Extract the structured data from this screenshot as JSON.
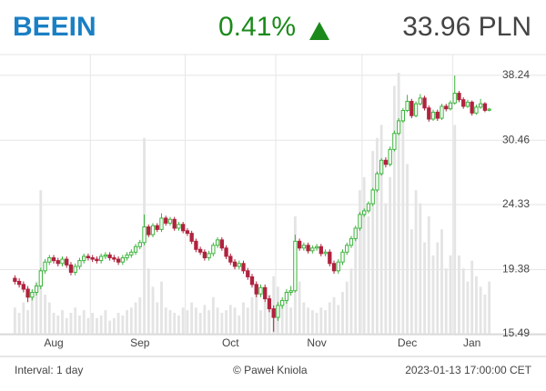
{
  "header": {
    "ticker": "BEEIN",
    "change": "0.41%",
    "price": "33.96 PLN"
  },
  "chart_data": {
    "type": "candlestick",
    "categories": [
      null,
      null,
      null,
      null,
      null,
      null,
      null,
      null,
      null,
      "Aug",
      null,
      null,
      null,
      null,
      null,
      null,
      null,
      null,
      null,
      null,
      null,
      null,
      null,
      null,
      null,
      null,
      null,
      null,
      null,
      "Sep",
      null,
      null,
      null,
      null,
      null,
      null,
      null,
      null,
      null,
      null,
      null,
      null,
      null,
      null,
      null,
      null,
      null,
      null,
      null,
      null,
      "Oct",
      null,
      null,
      null,
      null,
      null,
      null,
      null,
      null,
      null,
      null,
      null,
      null,
      null,
      null,
      null,
      null,
      null,
      null,
      null,
      "Nov",
      null,
      null,
      null,
      null,
      null,
      null,
      null,
      null,
      null,
      null,
      null,
      null,
      null,
      null,
      null,
      null,
      null,
      null,
      null,
      null,
      "Dec",
      null,
      null,
      null,
      null,
      null,
      null,
      null,
      null,
      null,
      null,
      null,
      null,
      null,
      null,
      "Jan",
      null,
      null,
      null,
      null
    ],
    "ohlc": [
      [
        18.8,
        19.0,
        18.4,
        18.6
      ],
      [
        18.6,
        18.8,
        18.2,
        18.4
      ],
      [
        18.4,
        18.6,
        17.9,
        18.1
      ],
      [
        18.1,
        18.3,
        17.3,
        17.6
      ],
      [
        17.6,
        18.1,
        17.4,
        17.9
      ],
      [
        17.9,
        18.5,
        17.7,
        18.3
      ],
      [
        18.3,
        19.5,
        18.1,
        19.3
      ],
      [
        19.3,
        20.1,
        19.1,
        19.9
      ],
      [
        19.9,
        20.4,
        19.7,
        20.2
      ],
      [
        20.2,
        20.4,
        19.8,
        20.0
      ],
      [
        20.0,
        20.2,
        19.6,
        19.8
      ],
      [
        19.8,
        20.3,
        19.6,
        20.1
      ],
      [
        20.1,
        20.3,
        19.5,
        19.7
      ],
      [
        19.7,
        19.9,
        19.0,
        19.2
      ],
      [
        19.2,
        19.8,
        19.0,
        19.6
      ],
      [
        19.6,
        20.2,
        19.4,
        20.0
      ],
      [
        20.0,
        20.5,
        19.8,
        20.3
      ],
      [
        20.3,
        20.5,
        20.0,
        20.2
      ],
      [
        20.2,
        20.4,
        19.9,
        20.1
      ],
      [
        20.1,
        20.3,
        19.8,
        20.0
      ],
      [
        20.0,
        20.5,
        19.8,
        20.3
      ],
      [
        20.3,
        20.6,
        20.1,
        20.4
      ],
      [
        20.4,
        20.6,
        20.0,
        20.2
      ],
      [
        20.2,
        20.4,
        19.9,
        20.1
      ],
      [
        20.1,
        20.3,
        19.7,
        19.9
      ],
      [
        19.9,
        20.4,
        19.7,
        20.2
      ],
      [
        20.2,
        20.6,
        20.0,
        20.4
      ],
      [
        20.4,
        20.8,
        20.2,
        20.6
      ],
      [
        20.6,
        21.2,
        20.4,
        21.0
      ],
      [
        21.0,
        21.5,
        20.8,
        21.3
      ],
      [
        21.3,
        23.5,
        21.1,
        22.5
      ],
      [
        22.5,
        22.7,
        21.7,
        21.9
      ],
      [
        21.9,
        22.8,
        21.7,
        22.6
      ],
      [
        22.6,
        22.8,
        22.1,
        22.3
      ],
      [
        22.3,
        23.6,
        22.1,
        23.2
      ],
      [
        23.2,
        23.4,
        22.6,
        22.8
      ],
      [
        22.8,
        23.3,
        22.6,
        23.1
      ],
      [
        23.1,
        23.3,
        22.2,
        22.4
      ],
      [
        22.4,
        22.9,
        22.2,
        22.7
      ],
      [
        22.7,
        22.9,
        22.0,
        22.2
      ],
      [
        22.2,
        22.4,
        21.8,
        22.0
      ],
      [
        22.0,
        22.2,
        21.2,
        21.4
      ],
      [
        21.4,
        21.6,
        20.6,
        20.8
      ],
      [
        20.8,
        21.0,
        20.4,
        20.6
      ],
      [
        20.6,
        20.8,
        20.0,
        20.2
      ],
      [
        20.2,
        20.7,
        20.0,
        20.5
      ],
      [
        20.5,
        21.3,
        20.3,
        21.1
      ],
      [
        21.1,
        21.7,
        20.9,
        21.5
      ],
      [
        21.5,
        21.7,
        20.7,
        20.9
      ],
      [
        20.9,
        21.1,
        20.1,
        20.3
      ],
      [
        20.3,
        20.5,
        19.7,
        19.9
      ],
      [
        19.9,
        20.1,
        19.4,
        19.6
      ],
      [
        19.6,
        20.0,
        19.4,
        19.8
      ],
      [
        19.8,
        20.0,
        19.1,
        19.3
      ],
      [
        19.3,
        19.5,
        18.7,
        18.9
      ],
      [
        18.9,
        19.1,
        18.2,
        18.4
      ],
      [
        18.4,
        18.6,
        17.6,
        17.8
      ],
      [
        17.8,
        18.4,
        17.6,
        18.2
      ],
      [
        18.2,
        18.4,
        17.3,
        17.5
      ],
      [
        17.5,
        17.7,
        16.7,
        16.9
      ],
      [
        16.9,
        17.1,
        15.6,
        16.4
      ],
      [
        16.4,
        17.3,
        16.2,
        17.1
      ],
      [
        17.1,
        17.6,
        16.9,
        17.4
      ],
      [
        17.4,
        18.1,
        17.2,
        17.9
      ],
      [
        17.9,
        18.3,
        17.7,
        18.0
      ],
      [
        18.0,
        21.9,
        17.9,
        21.4
      ],
      [
        21.4,
        21.6,
        20.7,
        20.9
      ],
      [
        20.9,
        21.3,
        20.7,
        21.1
      ],
      [
        21.1,
        21.3,
        20.5,
        20.7
      ],
      [
        20.7,
        21.1,
        20.5,
        20.9
      ],
      [
        20.9,
        21.2,
        20.7,
        21.0
      ],
      [
        21.0,
        21.2,
        20.3,
        20.5
      ],
      [
        20.5,
        20.8,
        20.3,
        20.6
      ],
      [
        20.6,
        20.8,
        19.6,
        19.8
      ],
      [
        19.8,
        20.0,
        19.1,
        19.3
      ],
      [
        19.3,
        20.1,
        19.1,
        19.9
      ],
      [
        19.9,
        20.8,
        19.7,
        20.6
      ],
      [
        20.6,
        21.3,
        20.4,
        21.1
      ],
      [
        21.1,
        21.8,
        20.9,
        21.6
      ],
      [
        21.6,
        22.6,
        21.4,
        22.4
      ],
      [
        22.4,
        23.7,
        22.2,
        23.5
      ],
      [
        23.5,
        24.0,
        23.3,
        23.8
      ],
      [
        23.8,
        24.6,
        23.6,
        24.4
      ],
      [
        24.4,
        25.8,
        24.2,
        25.6
      ],
      [
        25.6,
        27.3,
        25.4,
        27.1
      ],
      [
        27.1,
        28.6,
        26.9,
        28.4
      ],
      [
        28.4,
        28.7,
        27.7,
        28.0
      ],
      [
        28.0,
        29.8,
        27.8,
        29.5
      ],
      [
        29.5,
        31.5,
        29.3,
        31.2
      ],
      [
        31.2,
        32.9,
        31.0,
        32.6
      ],
      [
        32.6,
        34.1,
        32.4,
        33.8
      ],
      [
        33.8,
        35.7,
        33.6,
        34.9
      ],
      [
        34.9,
        35.2,
        32.9,
        33.2
      ],
      [
        33.2,
        34.9,
        33.0,
        34.6
      ],
      [
        34.6,
        35.8,
        34.4,
        35.3
      ],
      [
        35.3,
        35.6,
        33.8,
        34.1
      ],
      [
        34.1,
        34.4,
        32.5,
        32.8
      ],
      [
        32.8,
        33.9,
        32.6,
        33.6
      ],
      [
        33.6,
        33.9,
        32.6,
        32.9
      ],
      [
        32.9,
        34.6,
        32.7,
        34.3
      ],
      [
        34.3,
        34.6,
        33.7,
        34.0
      ],
      [
        34.0,
        35.0,
        33.8,
        34.7
      ],
      [
        34.7,
        38.2,
        34.5,
        35.9
      ],
      [
        35.9,
        36.2,
        34.8,
        35.1
      ],
      [
        35.1,
        35.4,
        34.0,
        34.3
      ],
      [
        34.3,
        35.1,
        34.1,
        34.8
      ],
      [
        34.8,
        35.0,
        33.2,
        33.5
      ],
      [
        33.5,
        34.5,
        33.3,
        34.2
      ],
      [
        34.2,
        35.2,
        34.0,
        34.6
      ],
      [
        34.6,
        34.8,
        33.6,
        33.82
      ],
      [
        33.82,
        34.1,
        33.7,
        33.96
      ]
    ],
    "volume": [
      10,
      8,
      12,
      9,
      14,
      20,
      55,
      15,
      12,
      8,
      7,
      9,
      6,
      8,
      10,
      7,
      9,
      6,
      8,
      6,
      7,
      9,
      5,
      6,
      8,
      7,
      9,
      10,
      12,
      14,
      75,
      25,
      18,
      12,
      20,
      10,
      9,
      8,
      7,
      10,
      9,
      12,
      10,
      8,
      11,
      9,
      14,
      10,
      8,
      9,
      11,
      10,
      7,
      12,
      10,
      14,
      16,
      9,
      12,
      15,
      22,
      18,
      12,
      14,
      10,
      45,
      20,
      12,
      10,
      9,
      8,
      10,
      9,
      12,
      14,
      11,
      16,
      20,
      25,
      40,
      55,
      60,
      45,
      70,
      75,
      80,
      50,
      60,
      95,
      100,
      85,
      65,
      40,
      55,
      50,
      35,
      45,
      30,
      35,
      40,
      25,
      30,
      80,
      30,
      25,
      20,
      28,
      22,
      18,
      15,
      20
    ],
    "up_color": "#3cb43c",
    "down_color": "#b0223e",
    "volume_color": "#e4e4e4",
    "ylim": [
      15.49,
      41.1
    ],
    "yticks": [
      15.49,
      19.38,
      24.33,
      30.46,
      38.24
    ],
    "log_scale": true,
    "grid": true
  },
  "footer": {
    "interval": "Interval: 1 day",
    "author": "© Paweł Kniola",
    "timestamp": "2023-01-13 17:00:00 CET"
  }
}
